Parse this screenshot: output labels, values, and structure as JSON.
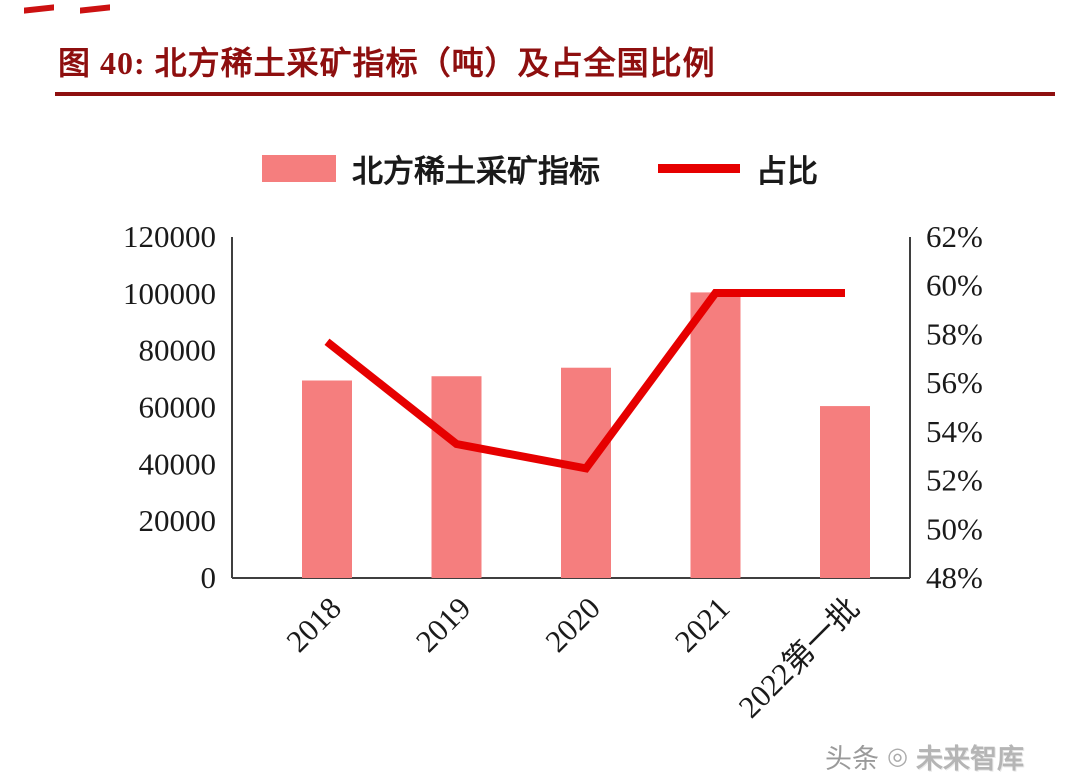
{
  "header": {
    "title": "图 40:  北方稀土采矿指标（吨）及占全国比例"
  },
  "legend": {
    "bar_label": "北方稀土采矿指标",
    "line_label": "占比"
  },
  "colors": {
    "title": "#8e0f0f",
    "bar": "#f57e7e",
    "line": "#e60000",
    "axis_text": "#1a1a1a"
  },
  "watermark": {
    "source": "头条",
    "logo_glyph": "◎",
    "name": "未来智库"
  },
  "chart_data": {
    "type": "bar",
    "title": "北方稀土采矿指标（吨）及占全国比例",
    "categories": [
      "2018",
      "2019",
      "2020",
      "2021",
      "2022第一批"
    ],
    "series": [
      {
        "name": "北方稀土采矿指标",
        "type": "bar",
        "axis": "left",
        "values": [
          69500,
          71000,
          74000,
          100500,
          60500
        ]
      },
      {
        "name": "占比",
        "type": "line",
        "axis": "right",
        "values": [
          57.7,
          53.5,
          52.5,
          59.7,
          59.7
        ]
      }
    ],
    "left_axis": {
      "min": 0,
      "max": 120000,
      "step": 20000,
      "suffix": ""
    },
    "right_axis": {
      "min": 48,
      "max": 62,
      "step": 2,
      "suffix": "%"
    },
    "grid": false,
    "legend_position": "top"
  }
}
